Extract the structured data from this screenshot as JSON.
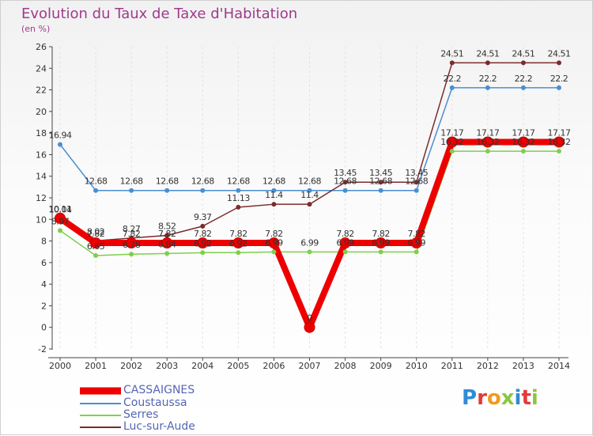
{
  "chart_data": {
    "type": "line",
    "title": "Evolution du Taux de Taxe d'Habitation",
    "subtitle": "(en %)",
    "xlabel": "",
    "ylabel": "",
    "ylim": [
      -2,
      26
    ],
    "yticks": [
      "-2",
      "0",
      "2",
      "4",
      "6",
      "8",
      "10",
      "12",
      "14",
      "16",
      "18",
      "20",
      "22",
      "24",
      "26"
    ],
    "categories": [
      "2000",
      "2001",
      "2002",
      "2003",
      "2004",
      "2005",
      "2006",
      "2007",
      "2008",
      "2009",
      "2010",
      "2011",
      "2012",
      "2013",
      "2014"
    ],
    "series": [
      {
        "name": "CASSAIGNES",
        "color": "#ee0000",
        "values": [
          10.11,
          7.82,
          7.82,
          7.82,
          7.82,
          7.82,
          7.82,
          0,
          7.82,
          7.82,
          7.82,
          17.17,
          17.17,
          17.17,
          17.17
        ],
        "labels": [
          "10.11",
          "7.82",
          "7.82",
          "7.82",
          "7.82",
          "7.82",
          "7.82",
          "0",
          "7.82",
          "7.82",
          "7.82",
          "17.17",
          "17.17",
          "17.17",
          "17.17"
        ]
      },
      {
        "name": "Coustaussa",
        "color": "#4a8ed2",
        "values": [
          16.94,
          12.68,
          12.68,
          12.68,
          12.68,
          12.68,
          12.68,
          12.68,
          12.68,
          12.68,
          12.68,
          22.2,
          22.2,
          22.2,
          22.2
        ],
        "labels": [
          "16.94",
          "12.68",
          "12.68",
          "12.68",
          "12.68",
          "12.68",
          "12.68",
          "12.68",
          "12.68",
          "12.68",
          "12.68",
          "22.2",
          "22.2",
          "22.2",
          "22.2"
        ]
      },
      {
        "name": "Serres",
        "color": "#7ed04c",
        "values": [
          8.97,
          6.65,
          6.78,
          6.84,
          6.92,
          6.92,
          6.99,
          6.99,
          6.99,
          6.99,
          6.99,
          16.32,
          16.32,
          16.32,
          16.32
        ],
        "labels": [
          "8.97",
          "6.65",
          "6.78",
          "6.84",
          "6.92",
          "6.92",
          "6.99",
          "6.99",
          "6.99",
          "6.99",
          "6.99",
          "16.32",
          "16.32",
          "16.32",
          "16.32"
        ]
      },
      {
        "name": "Luc-sur-Aude",
        "color": "#7a2c2c",
        "values": [
          10.04,
          8.02,
          8.27,
          8.52,
          9.37,
          11.13,
          11.4,
          11.4,
          13.45,
          13.45,
          13.45,
          24.51,
          24.51,
          24.51,
          24.51
        ],
        "labels": [
          "10.04",
          "8.02",
          "8.27",
          "8.52",
          "9.37",
          "11.13",
          "11.4",
          "11.4",
          "13.45",
          "13.45",
          "13.45",
          "24.51",
          "24.51",
          "24.51",
          "24.51"
        ]
      }
    ],
    "legend_position": "bottom-left"
  },
  "legend": {
    "items": [
      "CASSAIGNES",
      "Coustaussa",
      "Serres",
      "Luc-sur-Aude"
    ]
  },
  "logo": {
    "text": "Proxiti",
    "letters": [
      "P",
      "r",
      "o",
      "x",
      "i",
      "t",
      "i"
    ],
    "colors": [
      "#2f8bd6",
      "#e23a3a",
      "#f19a1c",
      "#8cc63f",
      "#2f8bd6",
      "#e23a3a",
      "#8cc63f"
    ]
  }
}
